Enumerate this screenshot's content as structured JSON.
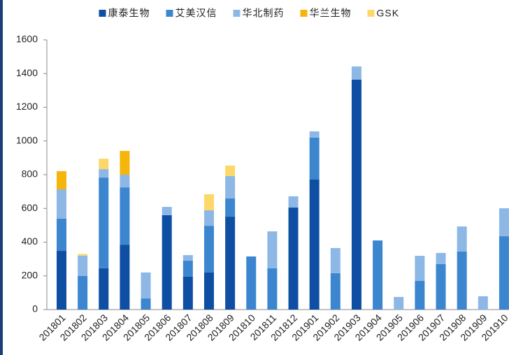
{
  "chart_data": {
    "type": "stacked_bar",
    "categories": [
      "201801",
      "201802",
      "201803",
      "201804",
      "201805",
      "201806",
      "201807",
      "201808",
      "201809",
      "201810",
      "201811",
      "201812",
      "201901",
      "201902",
      "201903",
      "201904",
      "201905",
      "201906",
      "201907",
      "201908",
      "201909",
      "201910"
    ],
    "series": [
      {
        "name": "康泰生物",
        "color": "#0e4fa3",
        "values": [
          348,
          0,
          245,
          385,
          0,
          560,
          195,
          220,
          551,
          0,
          0,
          605,
          771,
          0,
          1364,
          0,
          0,
          0,
          0,
          0,
          0,
          0
        ]
      },
      {
        "name": "艾美汉信",
        "color": "#3c86d0",
        "values": [
          191,
          200,
          538,
          340,
          66,
          0,
          95,
          277,
          108,
          315,
          245,
          0,
          249,
          216,
          0,
          410,
          0,
          170,
          270,
          344,
          0,
          435
        ]
      },
      {
        "name": "华北制药",
        "color": "#8db8e6",
        "values": [
          174,
          120,
          50,
          75,
          154,
          49,
          33,
          92,
          133,
          0,
          219,
          67,
          37,
          149,
          78,
          0,
          75,
          149,
          66,
          149,
          79,
          166
        ]
      },
      {
        "name": "华兰生物",
        "color": "#f5b50a",
        "values": [
          108,
          0,
          0,
          141,
          0,
          0,
          0,
          0,
          0,
          0,
          0,
          0,
          0,
          0,
          0,
          0,
          0,
          0,
          0,
          0,
          0,
          0
        ]
      },
      {
        "name": "GSK",
        "color": "#fdd868",
        "values": [
          0,
          10,
          62,
          0,
          0,
          0,
          0,
          95,
          62,
          0,
          0,
          0,
          0,
          0,
          0,
          0,
          0,
          0,
          0,
          0,
          0,
          0
        ]
      }
    ],
    "ylim": [
      0,
      1600
    ],
    "yticks": [
      0,
      200,
      400,
      600,
      800,
      1000,
      1200,
      1400,
      1600
    ]
  }
}
